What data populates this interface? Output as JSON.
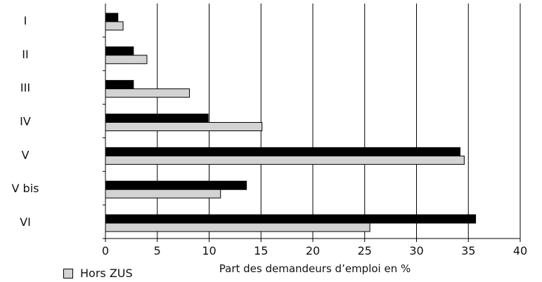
{
  "chart_data": {
    "type": "bar",
    "orientation": "horizontal",
    "categories": [
      "I",
      "II",
      "III",
      "IV",
      "V",
      "V bis",
      "VI"
    ],
    "series": [
      {
        "values": [
          1.2,
          2.7,
          2.7,
          9.9,
          34.2,
          13.6,
          35.7
        ],
        "color": "#000000"
      },
      {
        "name": "Hors ZUS",
        "values": [
          1.7,
          4.0,
          8.1,
          15.1,
          34.6,
          11.1,
          25.5
        ],
        "color": "#d3d3d3"
      }
    ],
    "xlabel": "Part des demandeurs d’emploi en %",
    "xlim": [
      0,
      40
    ],
    "xticks": [
      "0",
      "5",
      "10",
      "15",
      "20",
      "25",
      "30",
      "35",
      "40"
    ],
    "grid": "vertical",
    "legend_position": "bottom-left"
  }
}
